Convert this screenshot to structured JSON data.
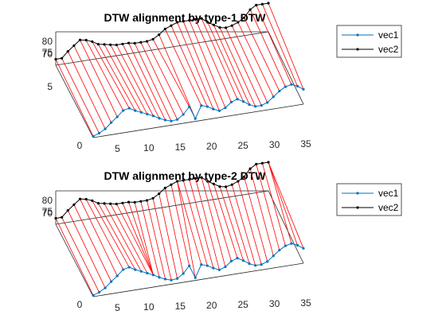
{
  "chart_data": [
    {
      "type": "line",
      "title": "DTW alignment by type-1 DTW",
      "legend": {
        "entries": [
          "vec1",
          "vec2"
        ],
        "placement": "outside-top-right"
      },
      "x_ticks": [
        "0",
        "5",
        "10",
        "15",
        "20",
        "25",
        "30",
        "35"
      ],
      "y_ticks": [
        "5"
      ],
      "z_ticks": [
        "70",
        "75",
        "80"
      ],
      "xlim": [
        0,
        35
      ],
      "zlim": [
        66,
        80
      ],
      "series": [
        {
          "name": "vec1",
          "color": "#0072BD",
          "values": [
            5.2,
            5.5,
            6.0,
            6.8,
            7.5,
            8.3,
            8.5,
            8.0,
            7.6,
            7.2,
            6.8,
            6.3,
            5.9,
            5.6,
            5.7,
            6.3,
            7.3,
            5.4,
            7.2,
            6.9,
            6.4,
            6.0,
            6.3,
            7.0,
            7.3,
            6.8,
            6.2,
            5.8,
            5.8,
            6.1,
            6.8,
            7.5,
            8.0,
            8.2,
            7.8,
            7.2
          ]
        },
        {
          "name": "vec2",
          "color": "#000000",
          "values": [
            68.5,
            68.5,
            71,
            73,
            75,
            74.5,
            73.5,
            72,
            71.5,
            71,
            70.5,
            70.5,
            70.5,
            70,
            70,
            70,
            70.5,
            72,
            74,
            75,
            76,
            76,
            76,
            76,
            76,
            74,
            72.5,
            71,
            70.5,
            71,
            72,
            73.5,
            76.5,
            78,
            78,
            78
          ]
        }
      ],
      "alignment": [
        [
          0,
          0
        ],
        [
          1,
          1
        ],
        [
          2,
          2
        ],
        [
          3,
          3
        ],
        [
          4,
          4
        ],
        [
          5,
          5
        ],
        [
          6,
          6
        ],
        [
          7,
          7
        ],
        [
          8,
          8
        ],
        [
          9,
          9
        ],
        [
          10,
          10
        ],
        [
          11,
          11
        ],
        [
          12,
          12
        ],
        [
          13,
          13
        ],
        [
          14,
          14
        ],
        [
          15,
          15
        ],
        [
          16,
          16
        ],
        [
          17,
          17
        ],
        [
          18,
          18
        ],
        [
          19,
          19
        ],
        [
          20,
          20
        ],
        [
          21,
          21
        ],
        [
          22,
          22
        ],
        [
          23,
          23
        ],
        [
          24,
          24
        ],
        [
          25,
          25
        ],
        [
          26,
          26
        ],
        [
          27,
          27
        ],
        [
          28,
          28
        ],
        [
          29,
          29
        ],
        [
          30,
          30
        ],
        [
          31,
          31
        ],
        [
          32,
          32
        ],
        [
          33,
          33
        ],
        [
          34,
          34
        ],
        [
          35,
          35
        ]
      ]
    },
    {
      "type": "line",
      "title": "DTW alignment by type-2 DTW",
      "legend": {
        "entries": [
          "vec1",
          "vec2"
        ],
        "placement": "outside-top-right"
      },
      "x_ticks": [
        "0",
        "5",
        "10",
        "15",
        "20",
        "25",
        "30",
        "35"
      ],
      "y_ticks": [],
      "z_ticks": [
        "70",
        "75",
        "80"
      ],
      "xlim": [
        0,
        35
      ],
      "zlim": [
        66,
        80
      ],
      "series": [
        {
          "name": "vec1",
          "color": "#0072BD",
          "values": [
            5.2,
            5.5,
            6.0,
            6.8,
            7.5,
            8.3,
            8.5,
            8.0,
            7.6,
            7.2,
            6.8,
            6.3,
            5.9,
            5.6,
            5.7,
            6.3,
            7.3,
            5.4,
            7.2,
            6.9,
            6.4,
            6.0,
            6.3,
            7.0,
            7.3,
            6.8,
            6.2,
            5.8,
            5.8,
            6.1,
            6.8,
            7.5,
            8.0,
            8.2,
            7.8,
            7.2
          ]
        },
        {
          "name": "vec2",
          "color": "#000000",
          "values": [
            68.5,
            68.5,
            71,
            73,
            75,
            74.5,
            73.5,
            72,
            71.5,
            71,
            70.5,
            70.5,
            70.5,
            70,
            70,
            70,
            70.5,
            72,
            74,
            75,
            76,
            76,
            76,
            76,
            76,
            74,
            72.5,
            71,
            70.5,
            71,
            72,
            73.5,
            76.5,
            78,
            78,
            78
          ]
        }
      ],
      "alignment": [
        [
          0,
          0
        ],
        [
          1,
          1
        ],
        [
          2,
          2
        ],
        [
          3,
          3
        ],
        [
          4,
          4
        ],
        [
          5,
          5
        ],
        [
          6,
          6
        ],
        [
          7,
          7
        ],
        [
          8,
          8
        ],
        [
          9,
          9
        ],
        [
          10,
          10
        ],
        [
          10,
          11
        ],
        [
          10,
          12
        ],
        [
          10,
          13
        ],
        [
          11,
          14
        ],
        [
          12,
          15
        ],
        [
          13,
          16
        ],
        [
          14,
          17
        ],
        [
          15,
          18
        ],
        [
          16,
          19
        ],
        [
          17,
          20
        ],
        [
          18,
          20
        ],
        [
          19,
          21
        ],
        [
          20,
          22
        ],
        [
          21,
          23
        ],
        [
          22,
          24
        ],
        [
          23,
          25
        ],
        [
          24,
          26
        ],
        [
          25,
          27
        ],
        [
          26,
          28
        ],
        [
          27,
          29
        ],
        [
          28,
          30
        ],
        [
          29,
          31
        ],
        [
          30,
          32
        ],
        [
          31,
          33
        ],
        [
          32,
          34
        ],
        [
          33,
          35
        ],
        [
          34,
          35
        ],
        [
          35,
          35
        ]
      ]
    }
  ]
}
